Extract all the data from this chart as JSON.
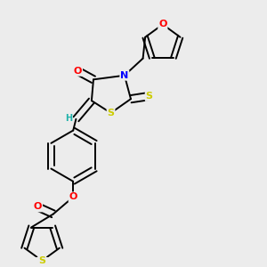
{
  "background_color": "#ececec",
  "bond_color": "#000000",
  "atom_colors": {
    "O": "#ff0000",
    "N": "#0000ff",
    "S": "#cccc00",
    "H": "#20b2aa",
    "C": "#000000"
  },
  "figsize": [
    3.0,
    3.0
  ],
  "dpi": 100,
  "lw": 1.4
}
